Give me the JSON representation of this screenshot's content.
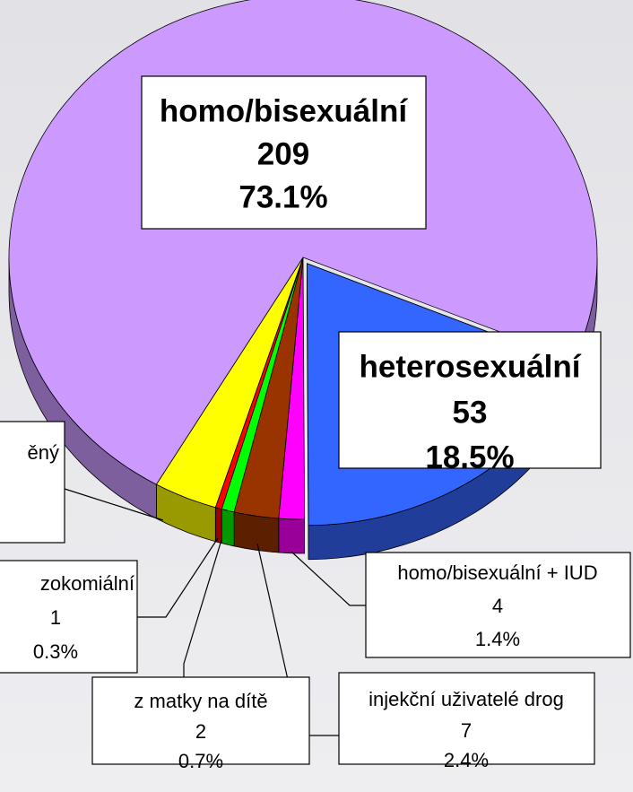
{
  "chart_data": {
    "type": "pie",
    "categories": [
      "heterosexuální",
      "homo/bisexuální + IUD",
      "injekční uživatelé drog",
      "z matky na dítě",
      "zokomiální",
      "ěný",
      "homo/bisexuální"
    ],
    "values": [
      53,
      4,
      7,
      2,
      1,
      10,
      209
    ],
    "percents": [
      18.5,
      1.4,
      2.4,
      0.7,
      0.3,
      3.5,
      73.1
    ],
    "percent_labels": [
      "18.5%",
      "1.4%",
      "2.4%",
      "0.7%",
      "0.3%",
      null,
      "73.1%"
    ],
    "colors": [
      "#3366ff",
      "#ff00ff",
      "#993300",
      "#00ff00",
      "#ff0000",
      "#ffff00",
      "#cc99ff"
    ],
    "side_colors": [
      "#1f3d99",
      "#990099",
      "#5c1f00",
      "#009900",
      "#990000",
      "#999900",
      "#7d5f9e"
    ],
    "exploded": [
      true,
      false,
      false,
      false,
      false,
      false,
      false
    ]
  }
}
